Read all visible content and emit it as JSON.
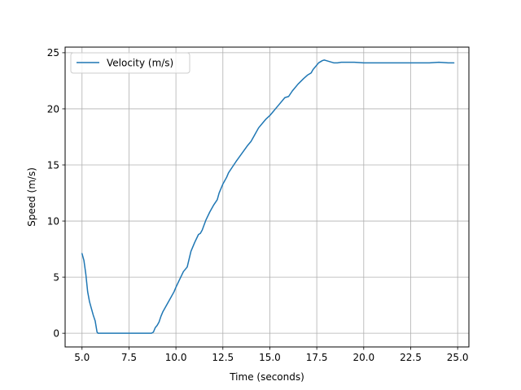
{
  "chart_data": {
    "type": "line",
    "xlabel": "Time (seconds)",
    "ylabel": "Speed (m/s)",
    "xlim": [
      4.1,
      25.6
    ],
    "ylim": [
      -1.22,
      25.5
    ],
    "x_ticks": [
      5.0,
      7.5,
      10.0,
      12.5,
      15.0,
      17.5,
      20.0,
      22.5,
      25.0
    ],
    "x_tick_labels": [
      "5.0",
      "7.5",
      "10.0",
      "12.5",
      "15.0",
      "17.5",
      "20.0",
      "22.5",
      "25.0"
    ],
    "y_ticks": [
      0,
      5,
      10,
      15,
      20,
      25
    ],
    "y_tick_labels": [
      "0",
      "5",
      "10",
      "15",
      "20",
      "25"
    ],
    "grid": true,
    "legend_position": "upper-left",
    "series": [
      {
        "name": "Velocity (m/s)",
        "color": "#1f77b4",
        "x": [
          5.0,
          5.1,
          5.2,
          5.3,
          5.4,
          5.5,
          5.6,
          5.7,
          5.8,
          5.85,
          5.9,
          6.2,
          6.5,
          7.0,
          7.5,
          8.0,
          8.5,
          8.7,
          8.8,
          8.9,
          9.0,
          9.1,
          9.2,
          9.3,
          9.5,
          9.7,
          9.9,
          10.0,
          10.2,
          10.4,
          10.5,
          10.6,
          10.8,
          11.0,
          11.2,
          11.3,
          11.4,
          11.6,
          11.8,
          12.0,
          12.2,
          12.3,
          12.5,
          12.7,
          12.8,
          13.0,
          13.2,
          13.5,
          13.8,
          14.0,
          14.2,
          14.4,
          14.6,
          14.8,
          15.0,
          15.2,
          15.3,
          15.5,
          15.8,
          16.0,
          16.2,
          16.3,
          16.5,
          16.8,
          17.0,
          17.2,
          17.3,
          17.5,
          17.6,
          17.8,
          17.9,
          18.0,
          18.2,
          18.4,
          18.6,
          18.8,
          19.0,
          19.5,
          20.0,
          20.5,
          21.0,
          21.5,
          22.0,
          22.5,
          23.0,
          23.5,
          24.0,
          24.5,
          24.8
        ],
        "y": [
          7.1,
          6.5,
          5.3,
          3.7,
          2.8,
          2.2,
          1.6,
          1.1,
          0.1,
          0.0,
          0.0,
          0.0,
          0.0,
          0.0,
          0.0,
          0.0,
          0.0,
          0.0,
          0.1,
          0.5,
          0.7,
          1.0,
          1.5,
          1.9,
          2.5,
          3.1,
          3.7,
          4.1,
          4.8,
          5.5,
          5.7,
          5.9,
          7.3,
          8.1,
          8.8,
          8.9,
          9.2,
          10.1,
          10.8,
          11.4,
          11.9,
          12.5,
          13.3,
          13.9,
          14.3,
          14.8,
          15.3,
          16.0,
          16.7,
          17.1,
          17.7,
          18.3,
          18.7,
          19.1,
          19.4,
          19.8,
          20.0,
          20.4,
          21.0,
          21.1,
          21.6,
          21.8,
          22.2,
          22.7,
          23.0,
          23.2,
          23.5,
          23.9,
          24.1,
          24.3,
          24.35,
          24.3,
          24.2,
          24.1,
          24.1,
          24.15,
          24.15,
          24.15,
          24.1,
          24.1,
          24.1,
          24.1,
          24.1,
          24.1,
          24.1,
          24.1,
          24.15,
          24.1,
          24.1
        ]
      }
    ]
  }
}
